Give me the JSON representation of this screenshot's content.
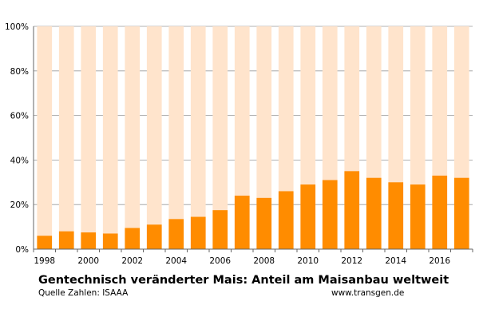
{
  "chart_data": {
    "type": "bar",
    "stacked_percent": true,
    "title": "Gentechnisch veränderter Mais: Anteil am Maisanbau weltweit",
    "source": "Quelle Zahlen: ISAAA",
    "site": "www.transgen.de",
    "categories": [
      "1998",
      "1999",
      "2000",
      "2001",
      "2002",
      "2003",
      "2004",
      "2005",
      "2006",
      "2007",
      "2008",
      "2009",
      "2010",
      "2011",
      "2012",
      "2013",
      "2014",
      "2015",
      "2016",
      "2017"
    ],
    "x_tick_labels": [
      "1998",
      "2000",
      "2002",
      "2004",
      "2006",
      "2008",
      "2010",
      "2012",
      "2014",
      "2016"
    ],
    "series": [
      {
        "values": [
          6,
          8,
          7.5,
          7,
          9.5,
          11,
          13.5,
          14.5,
          17.5,
          24,
          23,
          26,
          29,
          31,
          35,
          32,
          30,
          29,
          33,
          32
        ]
      }
    ],
    "ylim": [
      0,
      100
    ],
    "y_ticks": [
      "0%",
      "20%",
      "40%",
      "60%",
      "80%",
      "100%"
    ],
    "grid": true,
    "colors": {
      "share": "#ff8c00",
      "remainder": "#ffe4cc",
      "gridline": "#999999"
    }
  }
}
